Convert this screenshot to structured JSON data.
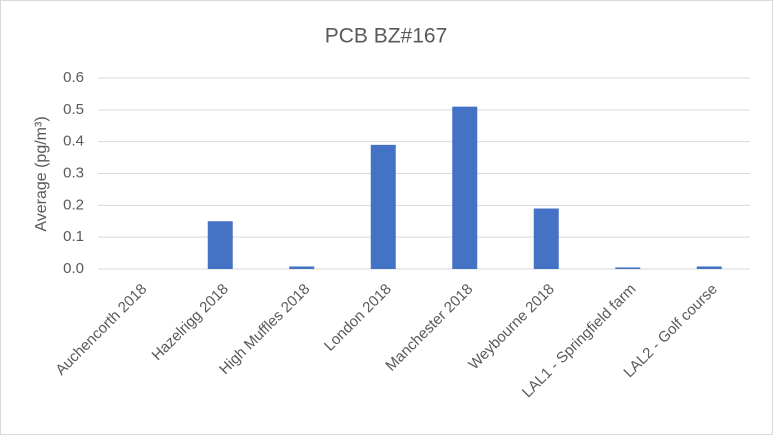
{
  "chart_data": {
    "type": "bar",
    "title": "PCB BZ#167",
    "y_label": "Average (pg/m³)",
    "categories": [
      "Auchencorth 2018",
      "Hazelrigg 2018",
      "High Muffles 2018",
      "London 2018",
      "Manchester 2018",
      "Weybourne 2018",
      "LAL1 - Springfield farm",
      "LAL2 - Golf course"
    ],
    "values": [
      0,
      0.15,
      0.008,
      0.39,
      0.51,
      0.19,
      0.005,
      0.008
    ],
    "color": "#4472c4",
    "ylim": [
      0,
      0.6
    ],
    "yticks": [
      {
        "value": 0,
        "label": "0.0"
      },
      0.1,
      0.2,
      0.3,
      0.4,
      0.5,
      0.6
    ],
    "grid": true
  }
}
